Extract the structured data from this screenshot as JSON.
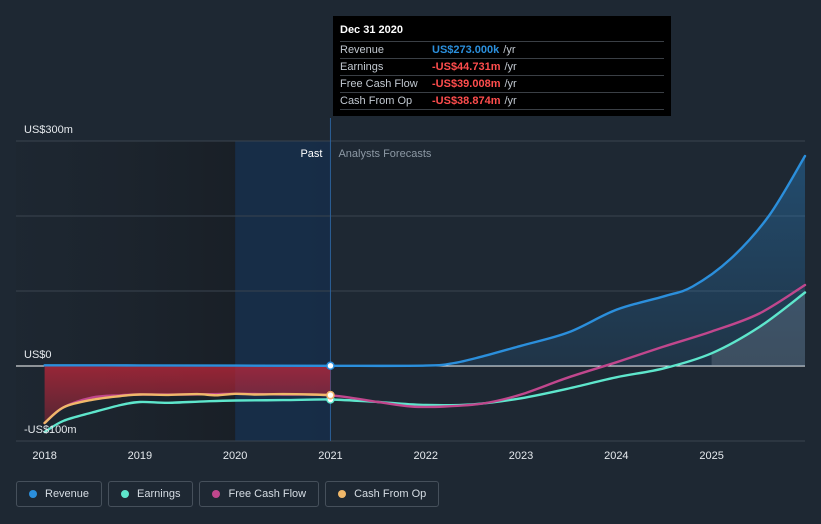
{
  "chart_data": {
    "type": "line",
    "title": "",
    "y_axis_labels": {
      "top": "US$300m",
      "zero": "US$0",
      "bottom": "-US$100m"
    },
    "ylim": [
      -100,
      300
    ],
    "x_tick_labels": [
      "2018",
      "2019",
      "2020",
      "2021",
      "2022",
      "2023",
      "2024",
      "2025"
    ],
    "x_tick_values": [
      2018,
      2019,
      2020,
      2021,
      2022,
      2023,
      2024,
      2025
    ],
    "xlim": [
      2017.7,
      2025.98
    ],
    "past_label": "Past",
    "forecast_label": "Analysts Forecasts",
    "divider_x": 2021.0,
    "past_highlight_start": 2020.0,
    "series": [
      {
        "name": "Revenue",
        "color": "#2b8fdc",
        "x": [
          2018.0,
          2019.0,
          2020.0,
          2021.0,
          2022.0,
          2022.3,
          2022.6,
          2023.0,
          2023.5,
          2024.0,
          2024.5,
          2024.8,
          2025.2,
          2025.6,
          2025.98
        ],
        "y": [
          1.0,
          0.8,
          0.6,
          0.273,
          0.5,
          4.0,
          13.0,
          27.0,
          45.0,
          75.0,
          93.0,
          106.0,
          143.0,
          200.0,
          280.0
        ]
      },
      {
        "name": "Earnings",
        "color": "#5ee6cc",
        "x": [
          2018.0,
          2018.2,
          2018.5,
          2018.8,
          2019.0,
          2019.3,
          2019.7,
          2020.0,
          2020.5,
          2021.0,
          2021.5,
          2022.0,
          2022.5,
          2023.0,
          2023.5,
          2024.0,
          2024.5,
          2025.0,
          2025.5,
          2025.98
        ],
        "y": [
          -88.0,
          -73.0,
          -62.0,
          -52.0,
          -48.0,
          -49.0,
          -47.0,
          -46.0,
          -45.5,
          -44.731,
          -48.0,
          -52.0,
          -51.0,
          -43.0,
          -30.0,
          -15.0,
          -3.0,
          17.0,
          52.0,
          98.0
        ]
      },
      {
        "name": "Free Cash Flow",
        "color": "#c0478d",
        "x": [
          2018.0,
          2018.2,
          2018.5,
          2018.8,
          2019.0,
          2019.5,
          2020.0,
          2020.5,
          2021.0,
          2021.5,
          2021.85,
          2022.2,
          2022.6,
          2023.0,
          2023.5,
          2024.0,
          2024.5,
          2025.0,
          2025.5,
          2025.98
        ],
        "y": [
          -76.0,
          -55.0,
          -42.0,
          -39.0,
          -38.0,
          -38.0,
          -37.0,
          -38.0,
          -39.008,
          -48.0,
          -54.0,
          -54.0,
          -50.0,
          -38.0,
          -15.0,
          5.0,
          26.0,
          46.0,
          70.0,
          108.0
        ]
      },
      {
        "name": "Cash From Op",
        "color": "#f0b86a",
        "x": [
          2018.0,
          2018.2,
          2018.5,
          2018.8,
          2019.0,
          2019.3,
          2019.6,
          2019.8,
          2020.0,
          2020.2,
          2020.5,
          2020.8,
          2021.0
        ],
        "y": [
          -76.0,
          -55.0,
          -45.0,
          -40.0,
          -38.0,
          -38.5,
          -37.5,
          -39.0,
          -37.0,
          -38.0,
          -37.5,
          -38.0,
          -38.874
        ]
      }
    ],
    "tooltip": {
      "date": "Dec 31 2020",
      "rows": [
        {
          "label": "Revenue",
          "value": "US$273.000k",
          "unit": "/yr",
          "color": "#2b8fdc"
        },
        {
          "label": "Earnings",
          "value": "-US$44.731m",
          "unit": "/yr",
          "color": "#ff4d4d"
        },
        {
          "label": "Free Cash Flow",
          "value": "-US$39.008m",
          "unit": "/yr",
          "color": "#ff4d4d"
        },
        {
          "label": "Cash From Op",
          "value": "-US$38.874m",
          "unit": "/yr",
          "color": "#ff4d4d"
        }
      ]
    },
    "legend": [
      {
        "name": "Revenue",
        "color": "#2b8fdc"
      },
      {
        "name": "Earnings",
        "color": "#5ee6cc"
      },
      {
        "name": "Free Cash Flow",
        "color": "#c0478d"
      },
      {
        "name": "Cash From Op",
        "color": "#f0b86a"
      }
    ]
  }
}
